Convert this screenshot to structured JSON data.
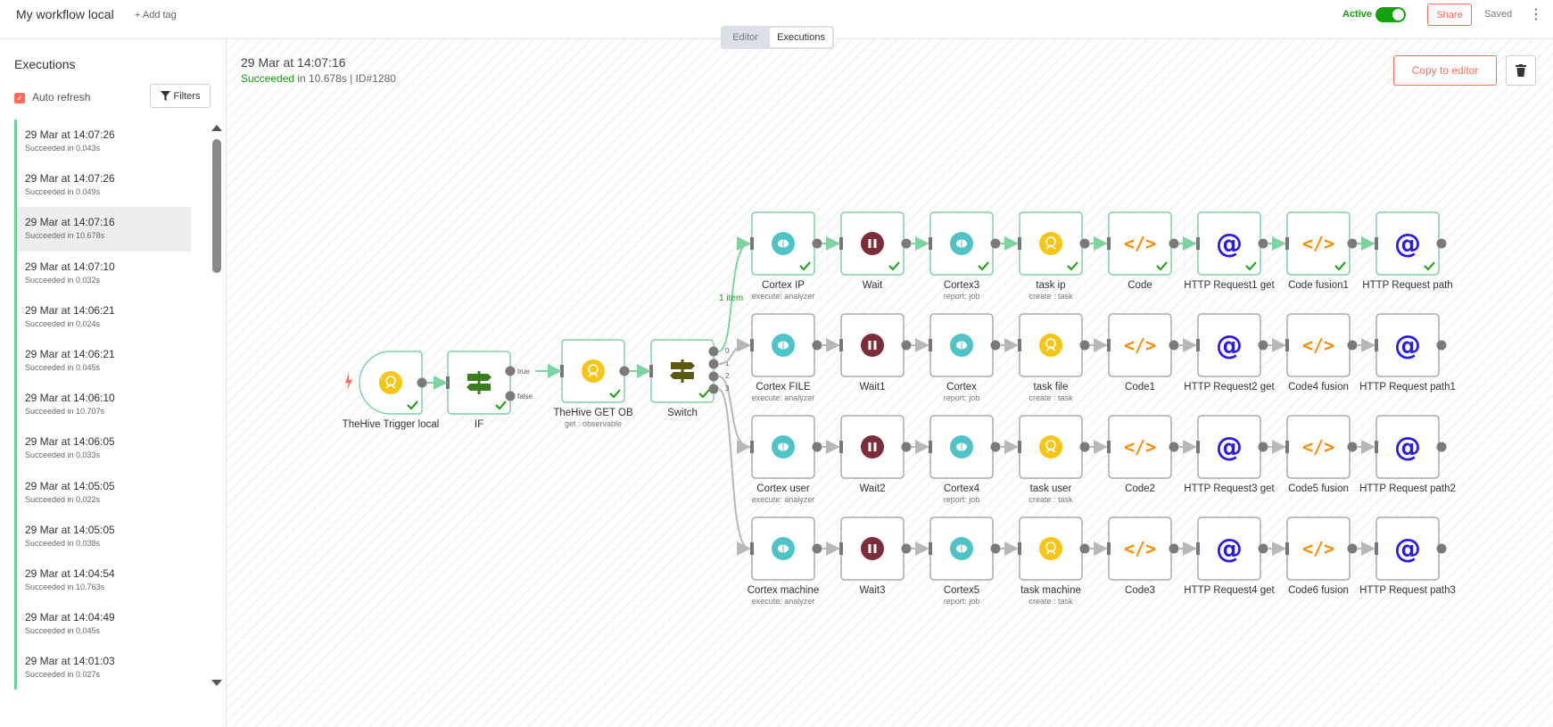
{
  "header": {
    "workflow_name": "My workflow local",
    "add_tag": "+ Add tag",
    "tabs": [
      "Editor",
      "Executions"
    ],
    "active_label": "Active",
    "share": "Share",
    "saved": "Saved"
  },
  "sidebar": {
    "title": "Executions",
    "auto_refresh": "Auto refresh",
    "filters": "Filters",
    "executions": [
      {
        "time": "29 Mar at 14:07:26",
        "status": "Succeeded in 0.043s"
      },
      {
        "time": "29 Mar at 14:07:26",
        "status": "Succeeded in 0.049s"
      },
      {
        "time": "29 Mar at 14:07:16",
        "status": "Succeeded in 10.678s"
      },
      {
        "time": "29 Mar at 14:07:10",
        "status": "Succeeded in 0.032s"
      },
      {
        "time": "29 Mar at 14:06:21",
        "status": "Succeeded in 0.024s"
      },
      {
        "time": "29 Mar at 14:06:21",
        "status": "Succeeded in 0.045s"
      },
      {
        "time": "29 Mar at 14:06:10",
        "status": "Succeeded in 10.707s"
      },
      {
        "time": "29 Mar at 14:06:05",
        "status": "Succeeded in 0.033s"
      },
      {
        "time": "29 Mar at 14:05:05",
        "status": "Succeeded in 0.022s"
      },
      {
        "time": "29 Mar at 14:05:05",
        "status": "Succeeded in 0.038s"
      },
      {
        "time": "29 Mar at 14:04:54",
        "status": "Succeeded in 10.763s"
      },
      {
        "time": "29 Mar at 14:04:49",
        "status": "Succeeded in 0.045s"
      },
      {
        "time": "29 Mar at 14:01:03",
        "status": "Succeeded in 0.027s"
      }
    ],
    "selected_index": 2
  },
  "run": {
    "time": "29 Mar at 14:07:16",
    "status_word": "Succeeded",
    "status_rest": " in 10.678s | ID#1280",
    "copy_to_editor": "Copy to editor"
  },
  "colors": {
    "accent": "#ff6d5a",
    "success": "#13a10e",
    "edge_success": "#7fd3a0",
    "edge_default": "#b8b8b8",
    "cortex": "#4fc3c7",
    "wait": "#7b2d3a",
    "thehive": "#f5c518",
    "code": "#ff8a00",
    "http": "#2a1ae8"
  },
  "workflow": {
    "main_nodes": [
      {
        "name": "TheHive Trigger local",
        "sub": "",
        "icon": "thehive-icon",
        "trigger": true,
        "success": true
      },
      {
        "name": "IF",
        "sub": "",
        "icon": "if-icon",
        "success": true
      },
      {
        "name": "TheHive GET OB",
        "sub": "get : observable",
        "icon": "thehive-icon",
        "success": true
      },
      {
        "name": "Switch",
        "sub": "",
        "icon": "switch-icon",
        "success": true
      }
    ],
    "if_outputs": [
      "true",
      "false"
    ],
    "switch_outputs": [
      "0",
      "1",
      "2",
      "3"
    ],
    "edge_item_label": "1 item",
    "branches": [
      [
        {
          "name": "Cortex IP",
          "sub": "execute: analyzer",
          "icon": "cortex-icon",
          "success": true
        },
        {
          "name": "Wait",
          "sub": "",
          "icon": "wait-icon",
          "success": true
        },
        {
          "name": "Cortex3",
          "sub": "report: job",
          "icon": "cortex-icon",
          "success": true
        },
        {
          "name": "task ip",
          "sub": "create : task",
          "icon": "thehive-icon",
          "success": true
        },
        {
          "name": "Code",
          "sub": "",
          "icon": "code-icon",
          "success": true
        },
        {
          "name": "HTTP Request1 get",
          "sub": "",
          "icon": "http-icon",
          "success": true
        },
        {
          "name": "Code fusion1",
          "sub": "",
          "icon": "code-icon",
          "success": true
        },
        {
          "name": "HTTP Request path",
          "sub": "",
          "icon": "http-icon",
          "success": true
        }
      ],
      [
        {
          "name": "Cortex FILE",
          "sub": "execute: analyzer",
          "icon": "cortex-icon",
          "success": false
        },
        {
          "name": "Wait1",
          "sub": "",
          "icon": "wait-icon",
          "success": false
        },
        {
          "name": "Cortex",
          "sub": "report: job",
          "icon": "cortex-icon",
          "success": false
        },
        {
          "name": "task file",
          "sub": "create : task",
          "icon": "thehive-icon",
          "success": false
        },
        {
          "name": "Code1",
          "sub": "",
          "icon": "code-icon",
          "success": false
        },
        {
          "name": "HTTP Request2 get",
          "sub": "",
          "icon": "http-icon",
          "success": false
        },
        {
          "name": "Code4 fusion",
          "sub": "",
          "icon": "code-icon",
          "success": false
        },
        {
          "name": "HTTP Request path1",
          "sub": "",
          "icon": "http-icon",
          "success": false
        }
      ],
      [
        {
          "name": "Cortex user",
          "sub": "execute: analyzer",
          "icon": "cortex-icon",
          "success": false
        },
        {
          "name": "Wait2",
          "sub": "",
          "icon": "wait-icon",
          "success": false
        },
        {
          "name": "Cortex4",
          "sub": "report: job",
          "icon": "cortex-icon",
          "success": false
        },
        {
          "name": "task user",
          "sub": "create : task",
          "icon": "thehive-icon",
          "success": false
        },
        {
          "name": "Code2",
          "sub": "",
          "icon": "code-icon",
          "success": false
        },
        {
          "name": "HTTP Request3 get",
          "sub": "",
          "icon": "http-icon",
          "success": false
        },
        {
          "name": "Code5 fusion",
          "sub": "",
          "icon": "code-icon",
          "success": false
        },
        {
          "name": "HTTP Request path2",
          "sub": "",
          "icon": "http-icon",
          "success": false
        }
      ],
      [
        {
          "name": "Cortex machine",
          "sub": "execute: analyzer",
          "icon": "cortex-icon",
          "success": false
        },
        {
          "name": "Wait3",
          "sub": "",
          "icon": "wait-icon",
          "success": false
        },
        {
          "name": "Cortex5",
          "sub": "report: job",
          "icon": "cortex-icon",
          "success": false
        },
        {
          "name": "task machine",
          "sub": "create : task",
          "icon": "thehive-icon",
          "success": false
        },
        {
          "name": "Code3",
          "sub": "",
          "icon": "code-icon",
          "success": false
        },
        {
          "name": "HTTP Request4 get",
          "sub": "",
          "icon": "http-icon",
          "success": false
        },
        {
          "name": "Code6 fusion",
          "sub": "",
          "icon": "code-icon",
          "success": false
        },
        {
          "name": "HTTP Request path3",
          "sub": "",
          "icon": "http-icon",
          "success": false
        }
      ]
    ]
  }
}
